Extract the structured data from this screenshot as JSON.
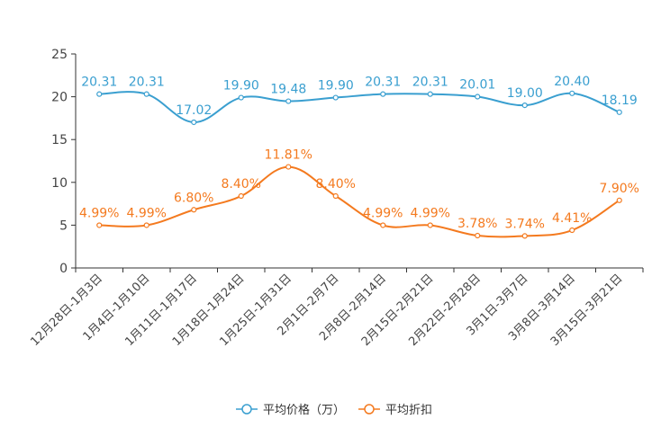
{
  "chart_data": {
    "type": "line",
    "title": "",
    "xlabel": "",
    "ylabel": "",
    "ylim": [
      0,
      25
    ],
    "yticks": [
      0,
      5,
      10,
      15,
      20,
      25
    ],
    "grid": false,
    "legend_position": "bottom-center",
    "smooth": true,
    "categories": [
      "12月28日-1月3日",
      "1月4日-1月10日",
      "1月11日-1月17日",
      "1月18日-1月24日",
      "1月25日-1月31日",
      "2月1日-2月7日",
      "2月8日-2月14日",
      "2月15日-2月21日",
      "2月22日-2月28日",
      "3月1日-3月7日",
      "3月8日-3月14日",
      "3月15日-3月21日"
    ],
    "series": [
      {
        "name": "平均价格（万）",
        "color": "#3a9fd0",
        "values": [
          20.31,
          20.31,
          17.02,
          19.9,
          19.48,
          19.9,
          20.31,
          20.31,
          20.01,
          19.0,
          20.4,
          18.19
        ],
        "labels": [
          "20.31",
          "20.31",
          "17.02",
          "19.90",
          "19.48",
          "19.90",
          "20.31",
          "20.31",
          "20.01",
          "19.00",
          "20.40",
          "18.19"
        ]
      },
      {
        "name": "平均折扣",
        "color": "#f47a1f",
        "values": [
          4.99,
          4.99,
          6.8,
          8.4,
          11.81,
          8.4,
          4.99,
          4.99,
          3.78,
          3.74,
          4.41,
          7.9
        ],
        "labels": [
          "4.99%",
          "4.99%",
          "6.80%",
          "8.40%",
          "11.81%",
          "8.40%",
          "4.99%",
          "4.99%",
          "3.78%",
          "3.74%",
          "4.41%",
          "7.90%"
        ]
      }
    ]
  }
}
